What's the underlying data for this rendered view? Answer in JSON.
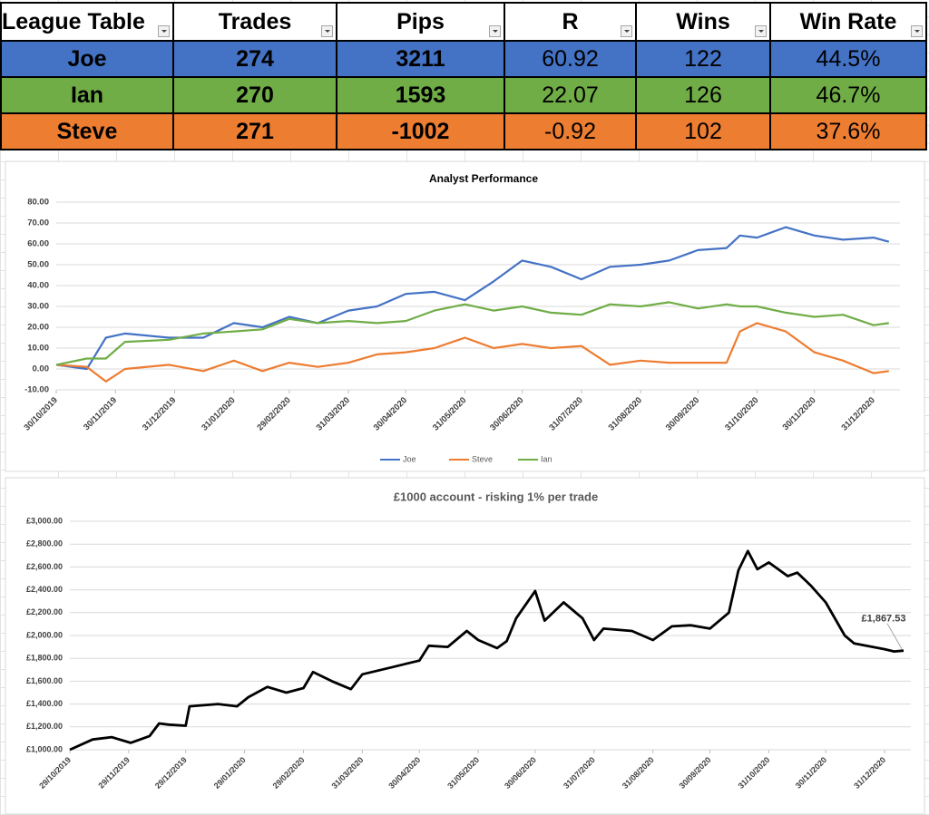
{
  "table": {
    "headers": [
      "League Table",
      "Trades",
      "Pips",
      "R",
      "Wins",
      "Win Rate"
    ],
    "rows": [
      [
        "Joe",
        "274",
        "3211",
        "60.92",
        "122",
        "44.5%"
      ],
      [
        "Ian",
        "270",
        "1593",
        "22.07",
        "126",
        "46.7%"
      ],
      [
        "Steve",
        "271",
        "-1002",
        "-0.92",
        "102",
        "37.6%"
      ]
    ]
  },
  "chart_data": [
    {
      "type": "line",
      "title": "Analyst Performance",
      "x": [
        "30/10/2019",
        "15/11/2019",
        "25/11/2019",
        "05/12/2019",
        "28/12/2019",
        "15/01/2020",
        "31/01/2020",
        "15/02/2020",
        "29/02/2020",
        "15/03/2020",
        "31/03/2020",
        "15/04/2020",
        "30/04/2020",
        "15/05/2020",
        "31/05/2020",
        "15/06/2020",
        "30/06/2020",
        "15/07/2020",
        "31/07/2020",
        "15/08/2020",
        "31/08/2020",
        "15/09/2020",
        "30/09/2020",
        "15/10/2020",
        "22/10/2020",
        "31/10/2020",
        "15/11/2020",
        "30/11/2020",
        "15/12/2020",
        "31/12/2020",
        "08/01/2021"
      ],
      "series": [
        {
          "name": "Joe",
          "color": "#4472c4",
          "values": [
            2,
            0,
            15,
            17,
            15,
            15,
            22,
            20,
            25,
            22,
            28,
            30,
            36,
            37,
            33,
            42,
            52,
            49,
            43,
            49,
            50,
            52,
            57,
            58,
            64,
            63,
            68,
            64,
            62,
            63,
            61
          ]
        },
        {
          "name": "Steve",
          "color": "#ed7d31",
          "values": [
            2,
            1,
            -6,
            0,
            2,
            -1,
            4,
            -1,
            3,
            1,
            3,
            7,
            8,
            10,
            15,
            10,
            12,
            10,
            11,
            2,
            4,
            3,
            3,
            3,
            18,
            22,
            18,
            8,
            4,
            -2,
            -1
          ]
        },
        {
          "name": "Ian",
          "color": "#70ad47",
          "values": [
            2,
            5,
            5,
            13,
            14,
            17,
            18,
            19,
            24,
            22,
            23,
            22,
            23,
            28,
            31,
            28,
            30,
            27,
            26,
            31,
            30,
            32,
            29,
            31,
            30,
            30,
            27,
            25,
            26,
            21,
            22
          ]
        }
      ],
      "xlim": [
        "30/10/2019",
        "10/01/2021"
      ],
      "xticks": [
        "30/10/2019",
        "30/11/2019",
        "31/12/2019",
        "31/01/2020",
        "29/02/2020",
        "31/03/2020",
        "30/04/2020",
        "31/05/2020",
        "30/06/2020",
        "31/07/2020",
        "31/08/2020",
        "30/09/2020",
        "31/10/2020",
        "30/11/2020",
        "31/12/2020"
      ],
      "ylim": [
        -10,
        80
      ],
      "yticks": [
        {
          "value": -10,
          "label": "-10.00"
        },
        {
          "value": 0,
          "label": "0.00"
        },
        {
          "value": 10,
          "label": "10.00"
        },
        {
          "value": 20,
          "label": "20.00"
        },
        {
          "value": 30,
          "label": "30.00"
        },
        {
          "value": 40,
          "label": "40.00"
        },
        {
          "value": 50,
          "label": "50.00"
        },
        {
          "value": 60,
          "label": "60.00"
        },
        {
          "value": 70,
          "label": "70.00"
        },
        {
          "value": 80,
          "label": "80.00"
        }
      ],
      "grid": true,
      "legend": "bottom"
    },
    {
      "type": "line",
      "title": "£1000 account - risking 1% per trade",
      "x": [
        "29/10/2019",
        "10/11/2019",
        "20/11/2019",
        "30/11/2019",
        "10/12/2019",
        "15/12/2019",
        "20/12/2019",
        "29/12/2019",
        "31/12/2019",
        "15/01/2020",
        "25/01/2020",
        "31/01/2020",
        "10/02/2020",
        "20/02/2020",
        "29/02/2020",
        "05/03/2020",
        "15/03/2020",
        "25/03/2020",
        "31/03/2020",
        "15/04/2020",
        "25/04/2020",
        "30/04/2020",
        "05/05/2020",
        "15/05/2020",
        "25/05/2020",
        "31/05/2020",
        "10/06/2020",
        "15/06/2020",
        "20/06/2020",
        "30/06/2020",
        "05/07/2020",
        "15/07/2020",
        "25/07/2020",
        "31/07/2020",
        "05/08/2020",
        "20/08/2020",
        "31/08/2020",
        "10/09/2020",
        "20/09/2020",
        "30/09/2020",
        "10/10/2020",
        "15/10/2020",
        "20/10/2020",
        "25/10/2020",
        "31/10/2020",
        "10/11/2020",
        "15/11/2020",
        "22/11/2020",
        "30/11/2020",
        "10/12/2020",
        "15/12/2020",
        "31/12/2020",
        "05/01/2021",
        "10/01/2021"
      ],
      "values": [
        1000,
        1090,
        1110,
        1060,
        1120,
        1230,
        1220,
        1210,
        1380,
        1400,
        1380,
        1460,
        1550,
        1500,
        1540,
        1680,
        1600,
        1530,
        1660,
        1720,
        1760,
        1780,
        1910,
        1900,
        2040,
        1960,
        1890,
        1950,
        2150,
        2390,
        2130,
        2290,
        2150,
        1960,
        2060,
        2040,
        1960,
        2080,
        2090,
        2060,
        2200,
        2570,
        2740,
        2580,
        2640,
        2520,
        2550,
        2440,
        2290,
        2000,
        1930,
        1880,
        1860,
        1867.53
      ],
      "value_labels": [
        null,
        null,
        null,
        null,
        null,
        null,
        null,
        null,
        null,
        null,
        null,
        null,
        null,
        null,
        null,
        null,
        null,
        null,
        null,
        null,
        null,
        null,
        null,
        null,
        null,
        null,
        null,
        null,
        null,
        null,
        null,
        null,
        null,
        null,
        null,
        null,
        null,
        null,
        null,
        null,
        null,
        null,
        null,
        null,
        null,
        null,
        null,
        null,
        null,
        null,
        null,
        null,
        null,
        "£1,867.53"
      ],
      "color": "#000000",
      "xlim": [
        "29/10/2019",
        "10/01/2021"
      ],
      "xticks": [
        "29/10/2019",
        "29/11/2019",
        "29/12/2019",
        "29/01/2020",
        "29/02/2020",
        "31/03/2020",
        "30/04/2020",
        "31/05/2020",
        "30/06/2020",
        "31/07/2020",
        "31/08/2020",
        "30/09/2020",
        "31/10/2020",
        "30/11/2020",
        "31/12/2020"
      ],
      "ylim": [
        1000,
        3000
      ],
      "yticks": [
        {
          "value": 1000,
          "label": "£1,000.00"
        },
        {
          "value": 1200,
          "label": "£1,200.00"
        },
        {
          "value": 1400,
          "label": "£1,400.00"
        },
        {
          "value": 1600,
          "label": "£1,600.00"
        },
        {
          "value": 1800,
          "label": "£1,800.00"
        },
        {
          "value": 2000,
          "label": "£2,000.00"
        },
        {
          "value": 2200,
          "label": "£2,200.00"
        },
        {
          "value": 2400,
          "label": "£2,400.00"
        },
        {
          "value": 2600,
          "label": "£2,600.00"
        },
        {
          "value": 2800,
          "label": "£2,800.00"
        },
        {
          "value": 3000,
          "label": "£3,000.00"
        }
      ],
      "grid": true
    }
  ]
}
